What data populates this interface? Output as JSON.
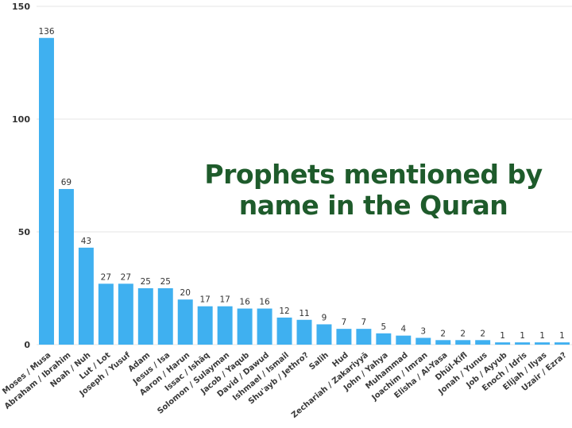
{
  "chart_data": {
    "type": "bar",
    "title": "Prophets mentioned by name in the Quran",
    "xlabel": "",
    "ylabel": "",
    "ylim": [
      0,
      150
    ],
    "yticks": [
      0,
      50,
      100,
      150
    ],
    "grid": true,
    "legend": "none",
    "categories": [
      "Moses / Musa",
      "Abraham / Ibrahim",
      "Noah / Nuh",
      "Lut / Lot",
      "Joseph / Yusuf",
      "Adam",
      "Jesus / Isa",
      "Aaron / Harun",
      "Issac / Ishāq",
      "Solomon / Sulayman",
      "Jacob / Yaqub",
      "David / Dawud",
      "Ishmael / Ismail",
      "Shu'ayb / Jethro?",
      "Salih",
      "Hud",
      "Zechariah / Zakariyyā",
      "John / Yahya",
      "Muhammad",
      "Joachim / Imran",
      "Elisha / Al-Yasa",
      "Dhūl-Kifl",
      "Jonah / Yunus",
      "Job / Ayyub",
      "Enoch / Idris",
      "Elijah / Ilyas",
      "Uzair / Ezra?"
    ],
    "values": [
      136,
      69,
      43,
      27,
      27,
      25,
      25,
      20,
      17,
      17,
      16,
      16,
      12,
      11,
      9,
      7,
      7,
      5,
      4,
      3,
      2,
      2,
      2,
      1,
      1,
      1,
      1
    ],
    "colors": {
      "bar": "#3fb0f0",
      "title": "#1e5b2b",
      "grid": "#e4e4e4",
      "text": "#333333"
    }
  }
}
